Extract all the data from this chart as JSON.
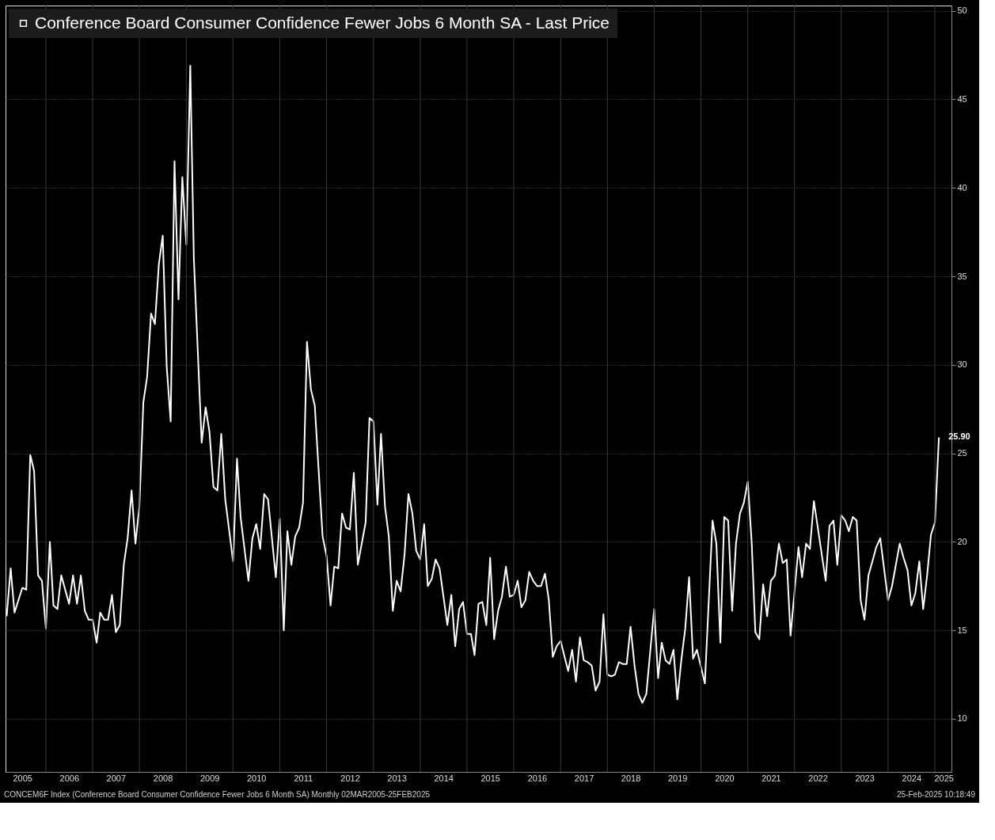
{
  "chart_data": {
    "type": "line",
    "x": [
      "2005-03",
      "2005-04",
      "2005-05",
      "2005-07",
      "2005-08",
      "2005-09",
      "2005-10",
      "2005-11",
      "2005-12",
      "2006-01",
      "2006-02",
      "2006-03",
      "2006-04",
      "2006-05",
      "2006-07",
      "2006-08",
      "2006-09",
      "2006-10",
      "2006-11",
      "2006-12",
      "2007-01",
      "2007-02",
      "2007-03",
      "2007-04",
      "2007-05",
      "2007-06",
      "2007-07",
      "2007-08",
      "2007-09",
      "2007-10",
      "2007-11",
      "2007-12",
      "2008-01",
      "2008-02",
      "2008-03",
      "2008-04",
      "2008-05",
      "2008-06",
      "2008-07",
      "2008-08",
      "2008-09",
      "2008-10",
      "2008-11",
      "2008-12",
      "2009-01",
      "2009-02",
      "2009-03",
      "2009-05",
      "2009-06",
      "2009-07",
      "2009-08",
      "2009-09",
      "2009-10",
      "2009-11",
      "2010-01",
      "2010-02",
      "2010-03",
      "2010-05",
      "2010-06",
      "2010-07",
      "2010-08",
      "2010-09",
      "2010-10",
      "2010-12",
      "2011-01",
      "2011-02",
      "2011-03",
      "2011-04",
      "2011-05",
      "2011-06",
      "2011-07",
      "2011-08",
      "2011-09",
      "2011-10",
      "2011-12",
      "2012-01",
      "2012-02",
      "2012-03",
      "2012-04",
      "2012-05",
      "2012-06",
      "2012-07",
      "2012-08",
      "2012-09",
      "2012-11",
      "2012-12",
      "2013-01",
      "2013-02",
      "2013-03",
      "2013-04",
      "2013-05",
      "2013-06",
      "2013-07",
      "2013-08",
      "2013-09",
      "2013-10",
      "2013-11",
      "2013-12",
      "2014-01",
      "2014-02",
      "2014-03",
      "2014-04",
      "2014-05",
      "2014-06",
      "2014-08",
      "2014-09",
      "2014-10",
      "2014-11",
      "2014-12",
      "2015-01",
      "2015-02",
      "2015-03",
      "2015-04",
      "2015-05",
      "2015-06",
      "2015-07",
      "2015-08",
      "2015-09",
      "2015-10",
      "2015-11",
      "2015-12",
      "2016-01",
      "2016-02",
      "2016-03",
      "2016-04",
      "2016-05",
      "2016-06",
      "2016-07",
      "2016-08",
      "2016-09",
      "2016-10",
      "2016-11",
      "2016-12",
      "2017-01",
      "2017-02",
      "2017-03",
      "2017-04",
      "2017-05",
      "2017-06",
      "2017-07",
      "2017-08",
      "2017-09",
      "2017-10",
      "2017-11",
      "2017-12",
      "2018-01",
      "2018-02",
      "2018-03",
      "2018-04",
      "2018-05",
      "2018-06",
      "2018-07",
      "2018-08",
      "2018-09",
      "2018-10",
      "2018-11",
      "2019-01",
      "2019-02",
      "2019-03",
      "2019-04",
      "2019-05",
      "2019-06",
      "2019-07",
      "2019-08",
      "2019-09",
      "2019-10",
      "2019-11",
      "2019-12",
      "2020-02",
      "2020-04",
      "2020-05",
      "2020-06",
      "2020-07",
      "2020-08",
      "2020-09",
      "2020-10",
      "2020-11",
      "2020-12",
      "2021-01",
      "2021-02",
      "2021-03",
      "2021-04",
      "2021-05",
      "2021-06",
      "2021-07",
      "2021-08",
      "2021-09",
      "2021-10",
      "2021-11",
      "2021-12",
      "2022-02",
      "2022-03",
      "2022-04",
      "2022-05",
      "2022-06",
      "2022-09",
      "2022-10",
      "2022-11",
      "2022-12",
      "2023-01",
      "2023-02",
      "2023-03",
      "2023-04",
      "2023-05",
      "2023-06",
      "2023-07",
      "2023-08",
      "2023-09",
      "2023-10",
      "2023-11",
      "2024-01",
      "2024-02",
      "2024-04",
      "2024-05",
      "2024-06",
      "2024-07",
      "2024-08",
      "2024-09",
      "2024-10",
      "2024-11",
      "2024-12",
      "2025-01",
      "2025-02"
    ],
    "series": [
      {
        "name": "Conference Board Consumer Confidence Fewer Jobs 6 Month SA - Last Price",
        "color": "#ffffff",
        "values": [
          15.8,
          18.5,
          16.0,
          17.4,
          17.3,
          24.9,
          24.0,
          18.1,
          17.8,
          15.1,
          20.0,
          16.4,
          16.2,
          18.1,
          16.5,
          18.1,
          16.5,
          18.1,
          16.1,
          15.6,
          15.6,
          14.3,
          16.0,
          15.6,
          15.6,
          17.0,
          14.9,
          15.3,
          18.7,
          20.2,
          22.9,
          19.9,
          22.0,
          27.9,
          29.3,
          32.9,
          32.3,
          35.7,
          37.3,
          29.9,
          26.8,
          41.5,
          33.7,
          40.6,
          36.8,
          46.9,
          36.0,
          25.6,
          27.6,
          26.2,
          23.1,
          22.9,
          26.1,
          22.4,
          18.9,
          24.7,
          21.4,
          17.8,
          20.2,
          21.0,
          19.6,
          22.7,
          22.4,
          18.0,
          21.3,
          15.0,
          20.6,
          18.7,
          20.3,
          20.8,
          22.2,
          31.3,
          28.6,
          27.7,
          20.3,
          19.2,
          16.4,
          18.6,
          18.5,
          21.6,
          20.8,
          20.7,
          23.9,
          18.7,
          21.1,
          27.0,
          26.8,
          22.1,
          26.1,
          22.0,
          20.3,
          16.1,
          17.8,
          17.2,
          19.3,
          22.7,
          21.6,
          19.5,
          19.0,
          21.0,
          17.5,
          17.9,
          19.0,
          18.5,
          15.3,
          17.0,
          14.1,
          16.2,
          16.6,
          14.8,
          14.8,
          13.6,
          16.5,
          16.6,
          15.3,
          19.1,
          14.5,
          16.1,
          16.9,
          18.6,
          16.9,
          17.0,
          17.8,
          16.3,
          16.7,
          18.3,
          17.8,
          17.5,
          17.5,
          18.2,
          16.7,
          13.5,
          14.1,
          14.4,
          13.5,
          12.7,
          13.9,
          12.1,
          14.6,
          13.3,
          13.2,
          13.0,
          11.6,
          12.1,
          15.9,
          12.5,
          12.4,
          12.5,
          13.2,
          13.1,
          13.1,
          15.2,
          13.0,
          11.4,
          10.9,
          11.4,
          16.2,
          12.3,
          14.3,
          13.3,
          13.1,
          13.9,
          11.1,
          13.3,
          15.1,
          18.0,
          13.4,
          13.9,
          12.0,
          21.2,
          19.9,
          14.3,
          21.4,
          21.2,
          16.1,
          19.9,
          21.6,
          22.2,
          23.4,
          19.9,
          14.9,
          14.5,
          17.6,
          15.8,
          17.8,
          18.1,
          19.9,
          18.8,
          19.0,
          14.7,
          19.7,
          18.0,
          19.9,
          19.6,
          22.3,
          17.8,
          20.9,
          21.2,
          18.7,
          21.5,
          21.2,
          20.6,
          21.4,
          21.2,
          16.7,
          15.6,
          18.1,
          18.9,
          19.7,
          20.2,
          16.7,
          17.5,
          19.9,
          19.1,
          18.4,
          16.4,
          17.1,
          18.9,
          16.2,
          18.1,
          20.4,
          21.1,
          25.9
        ]
      }
    ],
    "xlim": [
      "2005-02-20",
      "2025-05-10"
    ],
    "xticks": [
      {
        "value": "2005-07-01",
        "label": "2005"
      },
      {
        "value": "2006-01-01",
        "label": null
      },
      {
        "value": "2006-07-01",
        "label": "2006"
      },
      {
        "value": "2007-01-01",
        "label": null
      },
      {
        "value": "2007-07-01",
        "label": "2007"
      },
      {
        "value": "2008-01-01",
        "label": null
      },
      {
        "value": "2008-07-01",
        "label": "2008"
      },
      {
        "value": "2009-01-01",
        "label": null
      },
      {
        "value": "2009-07-01",
        "label": "2009"
      },
      {
        "value": "2010-01-01",
        "label": null
      },
      {
        "value": "2010-07-01",
        "label": "2010"
      },
      {
        "value": "2011-01-01",
        "label": null
      },
      {
        "value": "2011-07-01",
        "label": "2011"
      },
      {
        "value": "2012-01-01",
        "label": null
      },
      {
        "value": "2012-07-01",
        "label": "2012"
      },
      {
        "value": "2013-01-01",
        "label": null
      },
      {
        "value": "2013-07-01",
        "label": "2013"
      },
      {
        "value": "2014-01-01",
        "label": null
      },
      {
        "value": "2014-07-01",
        "label": "2014"
      },
      {
        "value": "2015-01-01",
        "label": null
      },
      {
        "value": "2015-07-01",
        "label": "2015"
      },
      {
        "value": "2016-01-01",
        "label": null
      },
      {
        "value": "2016-07-01",
        "label": "2016"
      },
      {
        "value": "2017-01-01",
        "label": null
      },
      {
        "value": "2017-07-01",
        "label": "2017"
      },
      {
        "value": "2018-01-01",
        "label": null
      },
      {
        "value": "2018-07-01",
        "label": "2018"
      },
      {
        "value": "2019-01-01",
        "label": null
      },
      {
        "value": "2019-07-01",
        "label": "2019"
      },
      {
        "value": "2020-01-01",
        "label": null
      },
      {
        "value": "2020-07-01",
        "label": "2020"
      },
      {
        "value": "2021-01-01",
        "label": null
      },
      {
        "value": "2021-07-01",
        "label": "2021"
      },
      {
        "value": "2022-01-01",
        "label": null
      },
      {
        "value": "2022-07-01",
        "label": "2022"
      },
      {
        "value": "2023-01-01",
        "label": null
      },
      {
        "value": "2023-07-01",
        "label": "2023"
      },
      {
        "value": "2024-01-01",
        "label": null
      },
      {
        "value": "2024-07-01",
        "label": "2024"
      },
      {
        "value": "2025-01-01",
        "label": null
      },
      {
        "value": "2025-03-10",
        "label": "2025"
      }
    ],
    "ylim": [
      7,
      50.3
    ],
    "yticks": [
      10,
      15,
      20,
      25,
      30,
      35,
      40,
      45,
      50
    ],
    "grid": true,
    "legend": "top left",
    "line_style": "solid",
    "annotations": [
      "CONCEM6F Index (Conference Board Consumer Confidence Fewer Jobs 6 Month SA)  Monthly 02MAR2005-25FEB2025",
      "25-Feb-2025 10:18:49",
      {
        "text": "25.90",
        "x": "2025-02",
        "y": 25.9
      }
    ]
  }
}
